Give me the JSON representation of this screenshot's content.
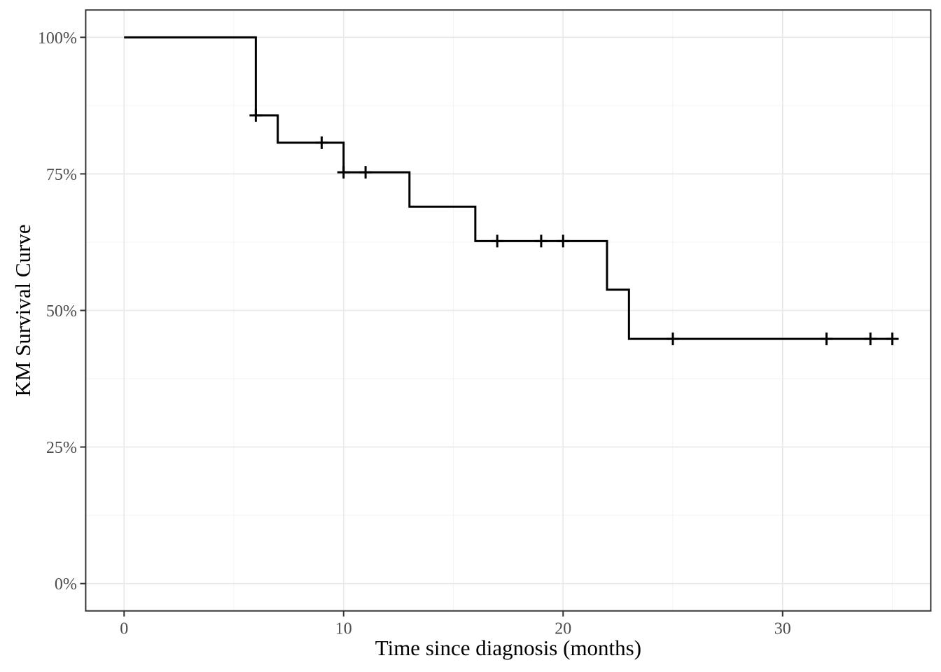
{
  "chart_data": {
    "type": "line",
    "subtype": "kaplan_meier_step",
    "title": "",
    "xlabel": "Time since diagnosis (months)",
    "ylabel": "KM Survival Curve",
    "xlim": [
      0,
      35
    ],
    "ylim": [
      0,
      1
    ],
    "axis_expansion": {
      "x": 0.05,
      "y": 0.05
    },
    "grid": "major_and_minor",
    "legend": "none",
    "x_ticks": [
      {
        "value": 0,
        "label": "0"
      },
      {
        "value": 10,
        "label": "10"
      },
      {
        "value": 20,
        "label": "20"
      },
      {
        "value": 30,
        "label": "30"
      }
    ],
    "y_ticks": [
      {
        "value": 0,
        "label": "0%"
      },
      {
        "value": 0.25,
        "label": "25%"
      },
      {
        "value": 0.5,
        "label": "50%"
      },
      {
        "value": 0.75,
        "label": "75%"
      },
      {
        "value": 1,
        "label": "100%"
      }
    ],
    "x_minor_gridlines": [
      5,
      15,
      25,
      35
    ],
    "y_minor_gridlines": [
      0.125,
      0.375,
      0.625,
      0.875
    ],
    "series": [
      {
        "name": "km_survival_estimate",
        "draw": "step_hv",
        "color": "#000000",
        "stroke_width": 3,
        "points": [
          [
            0,
            1.0
          ],
          [
            6,
            0.857
          ],
          [
            7,
            0.807
          ],
          [
            10,
            0.753
          ],
          [
            13,
            0.69
          ],
          [
            16,
            0.627
          ],
          [
            22,
            0.538
          ],
          [
            23,
            0.448
          ],
          [
            35,
            0.448
          ]
        ]
      }
    ],
    "censor_marks": {
      "shape": "plus",
      "color": "#000000",
      "size": 18,
      "stroke_width": 3,
      "points": [
        [
          6,
          0.857
        ],
        [
          9,
          0.807
        ],
        [
          10,
          0.753
        ],
        [
          11,
          0.753
        ],
        [
          17,
          0.627
        ],
        [
          19,
          0.627
        ],
        [
          20,
          0.627
        ],
        [
          25,
          0.448
        ],
        [
          32,
          0.448
        ],
        [
          34,
          0.448
        ],
        [
          35,
          0.448
        ]
      ]
    },
    "colors": {
      "background": "#ffffff",
      "panel_background": "#ffffff",
      "panel_border": "#333333",
      "grid_major": "#e8e8e8",
      "grid_minor": "#f3f3f3",
      "tick_mark": "#333333",
      "tick_label": "#4d4d4d",
      "axis_title": "#000000",
      "curve": "#000000"
    }
  }
}
